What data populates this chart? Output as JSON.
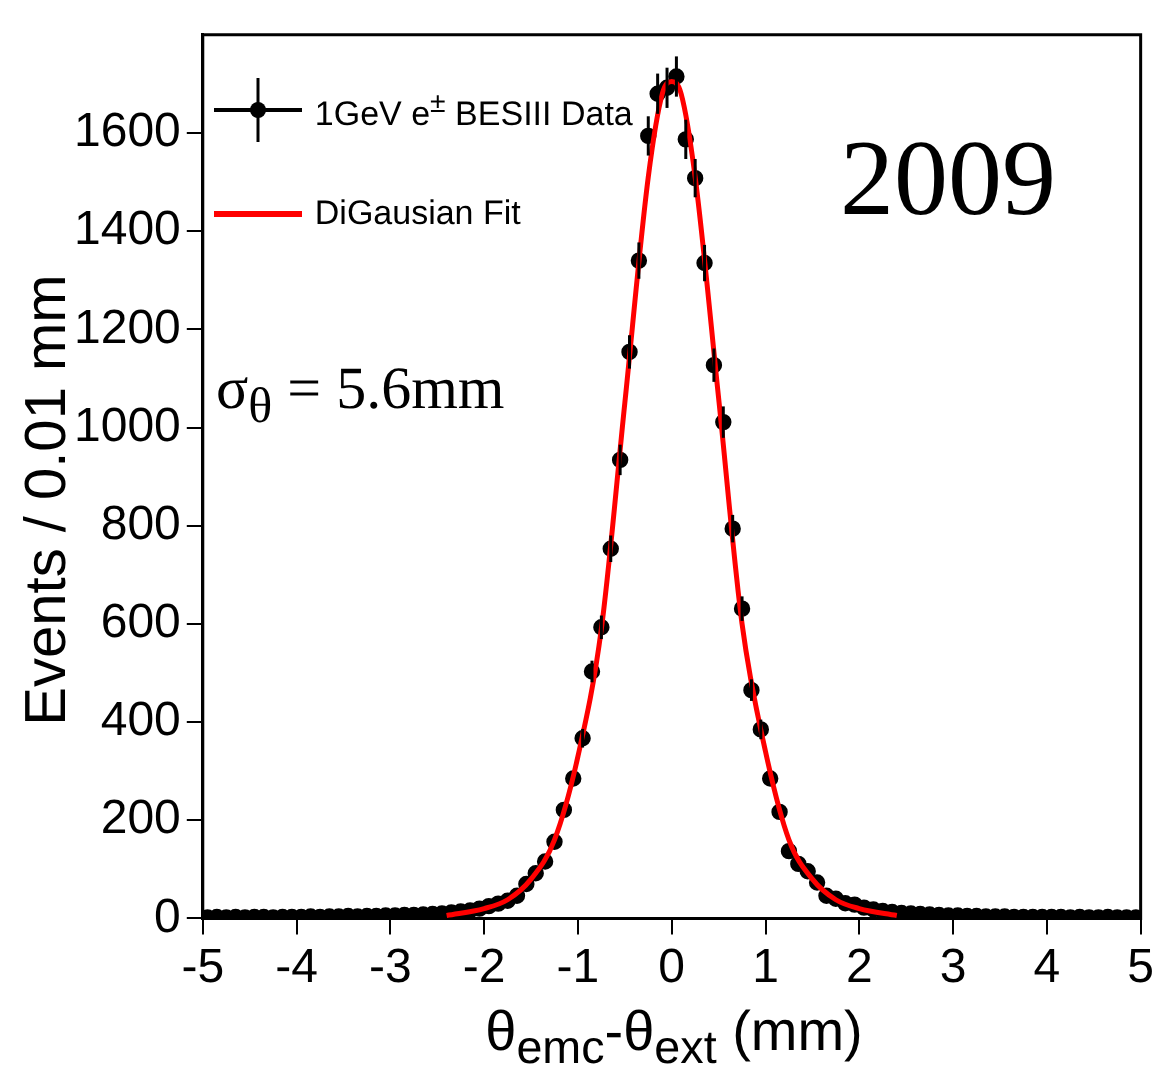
{
  "chart_data": {
    "type": "scatter",
    "xlabel": "θ$_{emc}$-θ$_{ext}$ (mm)",
    "ylabel": "Events / 0.01 mm",
    "annotations": [
      "2009",
      "σ$_{θ}$ = 5.6mm"
    ],
    "xlim": [
      -5,
      5
    ],
    "xticks": [
      -5,
      -4,
      -3,
      -2,
      -1,
      0,
      1,
      2,
      3,
      4,
      5
    ],
    "ylim": [
      0,
      1800
    ],
    "yticks": [
      0,
      200,
      400,
      600,
      800,
      1000,
      1200,
      1400,
      1600
    ],
    "grid": false,
    "legend": "top left",
    "series": [
      {
        "name": "1GeV e$^{±}$ BESIII Data",
        "color": "#000000",
        "marker": "circle",
        "x": [
          -4.95,
          -4.85,
          -4.75,
          -4.65,
          -4.55,
          -4.45,
          -4.35,
          -4.25,
          -4.15,
          -4.05,
          -3.95,
          -3.85,
          -3.75,
          -3.65,
          -3.55,
          -3.45,
          -3.35,
          -3.25,
          -3.15,
          -3.05,
          -2.95,
          -2.85,
          -2.75,
          -2.65,
          -2.55,
          -2.45,
          -2.35,
          -2.25,
          -2.15,
          -2.05,
          -1.95,
          -1.85,
          -1.75,
          -1.65,
          -1.55,
          -1.45,
          -1.35,
          -1.25,
          -1.15,
          -1.05,
          -0.95,
          -0.85,
          -0.75,
          -0.65,
          -0.55,
          -0.45,
          -0.35,
          -0.25,
          -0.15,
          -0.05,
          0.05,
          0.15,
          0.25,
          0.35,
          0.45,
          0.55,
          0.65,
          0.75,
          0.85,
          0.95,
          1.05,
          1.15,
          1.25,
          1.35,
          1.45,
          1.55,
          1.65,
          1.75,
          1.85,
          1.95,
          2.05,
          2.15,
          2.25,
          2.35,
          2.45,
          2.55,
          2.65,
          2.75,
          2.85,
          2.95,
          3.05,
          3.15,
          3.25,
          3.35,
          3.45,
          3.55,
          3.65,
          3.75,
          3.85,
          3.95,
          4.05,
          4.15,
          4.25,
          4.35,
          4.45,
          4.55,
          4.65,
          4.75,
          4.85,
          4.95
        ],
        "values": [
          2,
          3,
          2,
          3,
          2,
          3,
          3,
          2,
          3,
          3,
          3,
          4,
          3,
          4,
          4,
          5,
          4,
          5,
          5,
          6,
          6,
          7,
          7,
          8,
          9,
          10,
          12,
          14,
          16,
          20,
          25,
          30,
          36,
          46,
          70,
          92,
          116,
          156,
          221,
          285,
          367,
          503,
          593,
          753,
          934,
          1154,
          1340,
          1594,
          1680,
          1692,
          1715,
          1587,
          1508,
          1335,
          1127,
          1011,
          794,
          631,
          465,
          385,
          285,
          217,
          137,
          111,
          96,
          73,
          46,
          40,
          31,
          28,
          22,
          18,
          15,
          13,
          11,
          10,
          9,
          8,
          7,
          6,
          6,
          5,
          5,
          4,
          4,
          4,
          3,
          3,
          3,
          3,
          3,
          3,
          2,
          3,
          2,
          2,
          3,
          2,
          2,
          2
        ],
        "errors": [
          null,
          null,
          null,
          null,
          null,
          null,
          null,
          null,
          null,
          null,
          null,
          null,
          null,
          null,
          null,
          null,
          null,
          null,
          null,
          null,
          null,
          null,
          null,
          null,
          null,
          null,
          null,
          null,
          null,
          null,
          null,
          null,
          null,
          null,
          null,
          null,
          null,
          null,
          null,
          null,
          19,
          22,
          24,
          27,
          31,
          34,
          37,
          40,
          41,
          41,
          41,
          40,
          39,
          37,
          34,
          32,
          28,
          25,
          22,
          20,
          null,
          null,
          null,
          null,
          null,
          null,
          null,
          null,
          null,
          null,
          null,
          null,
          null,
          null,
          null,
          null,
          null,
          null,
          null,
          null,
          null,
          null,
          null,
          null,
          null,
          null,
          null,
          null,
          null,
          null,
          null,
          null,
          null,
          null,
          null,
          null,
          null,
          null,
          null,
          null
        ]
      },
      {
        "type": "line",
        "name": "DiGausian Fit",
        "color": "#ff0000",
        "marker": "none",
        "x": [
          -2.4,
          -2,
          -1.75,
          -1.5,
          -1.25,
          -1,
          -0.75,
          -0.5,
          -0.25,
          -0.1,
          0,
          0.1,
          0.25,
          0.5,
          0.75,
          1,
          1.25,
          1.5,
          1.75,
          2,
          2.4
        ],
        "values": [
          6,
          20,
          38,
          80,
          160,
          330,
          590,
          1050,
          1510,
          1680,
          1705,
          1680,
          1510,
          1060,
          600,
          340,
          160,
          80,
          38,
          20,
          6
        ]
      }
    ]
  }
}
